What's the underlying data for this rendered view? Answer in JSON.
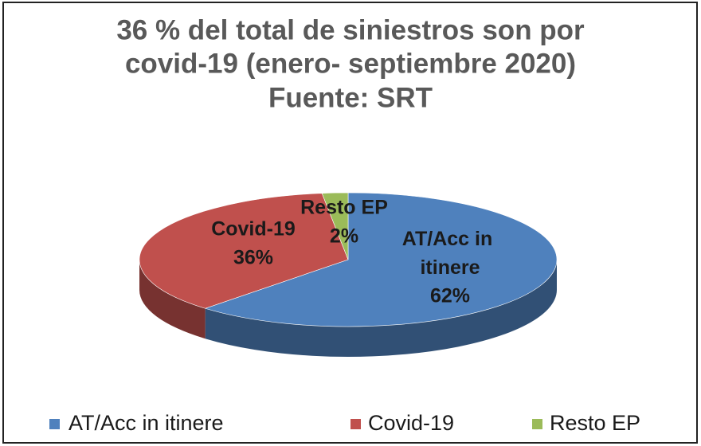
{
  "chart_data": {
    "type": "pie",
    "title": [
      "36 % del total de siniestros son por",
      "covid-19 (enero- septiembre 2020)",
      "Fuente: SRT"
    ],
    "categories": [
      "AT/Acc in itinere",
      "Covid-19",
      "Resto EP"
    ],
    "values": [
      62,
      36,
      2
    ],
    "value_labels": [
      "62%",
      "36%",
      "2%"
    ],
    "colors": [
      "#4f81bd",
      "#c0504d",
      "#9bbb59"
    ],
    "legend": "bottom"
  }
}
